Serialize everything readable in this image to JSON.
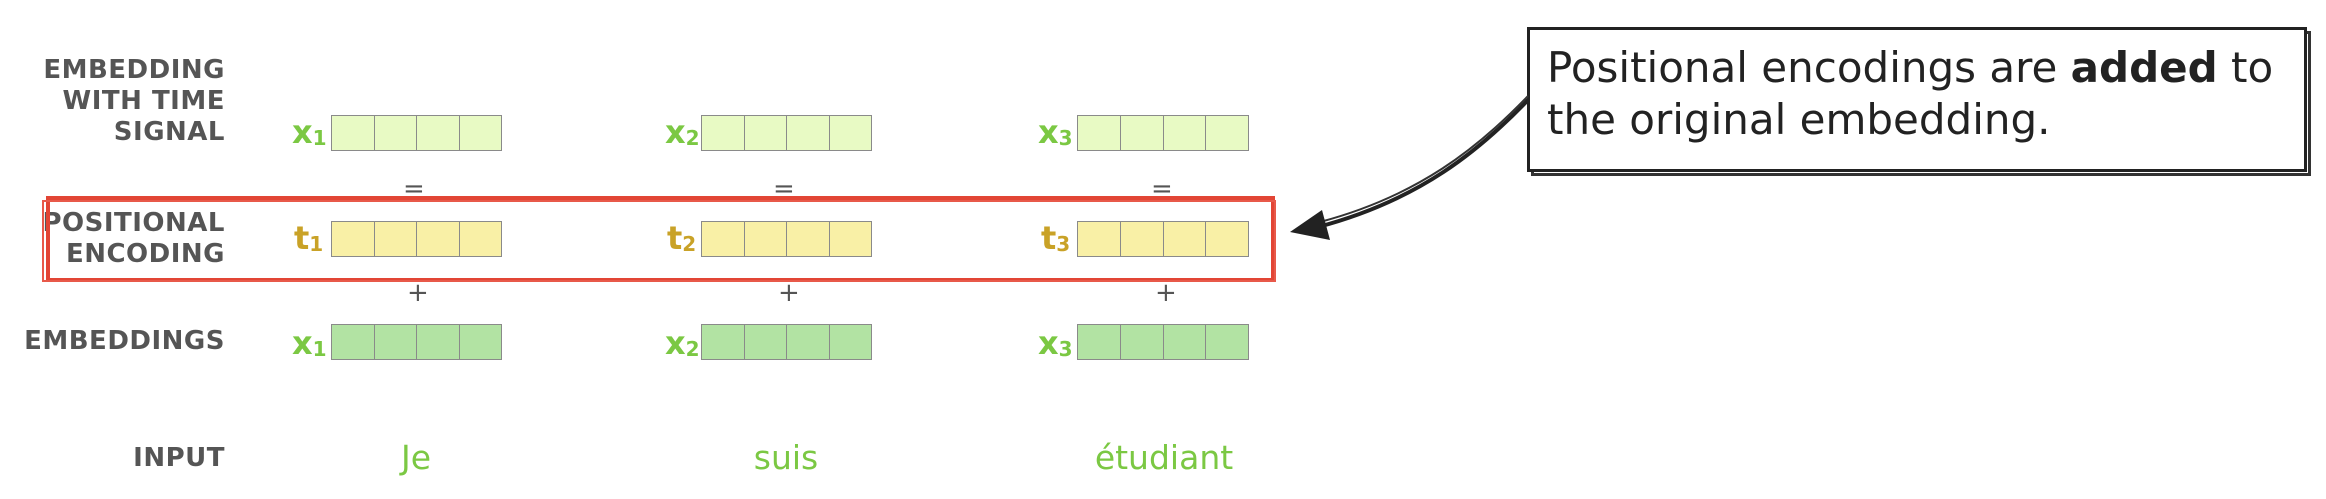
{
  "rows": {
    "embedding_with_time_signal": [
      "EMBEDDING",
      "WITH TIME",
      "SIGNAL"
    ],
    "positional_encoding": [
      "POSITIONAL",
      "ENCODING"
    ],
    "embeddings": [
      "EMBEDDINGS"
    ],
    "input": [
      "INPUT"
    ]
  },
  "columns": [
    {
      "signal_label": "x",
      "signal_sub": "1",
      "pos_label": "t",
      "pos_sub": "1",
      "emb_label": "x",
      "emb_sub": "1",
      "word": "Je"
    },
    {
      "signal_label": "x",
      "signal_sub": "2",
      "pos_label": "t",
      "pos_sub": "2",
      "emb_label": "x",
      "emb_sub": "2",
      "word": "suis"
    },
    {
      "signal_label": "x",
      "signal_sub": "3",
      "pos_label": "t",
      "pos_sub": "3",
      "emb_label": "x",
      "emb_sub": "3",
      "word": "étudiant"
    }
  ],
  "operators": {
    "equals": "=",
    "plus": "+"
  },
  "callout": {
    "text_before": "Positional encodings are ",
    "text_bold": "added",
    "text_after": " to the original embedding."
  },
  "colors": {
    "signal_fill": "#e8fac4",
    "positional_fill": "#f9f0a6",
    "embedding_fill": "#b2e3a3",
    "green_label": "#7bc843",
    "gold_label": "#c9a227",
    "highlight": "#e24535",
    "word": "#7bc843"
  }
}
